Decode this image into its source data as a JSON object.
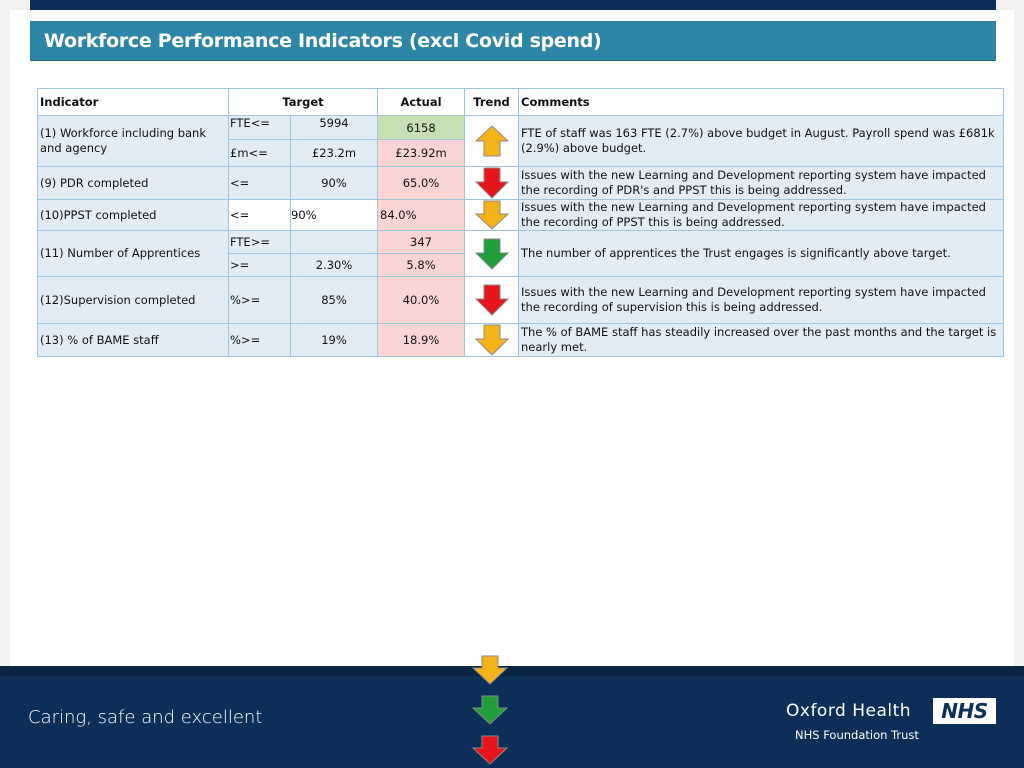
{
  "title": "Workforce Performance Indicators (excl Covid spend)",
  "header": {
    "indicator": "Indicator",
    "target": "Target",
    "actual": "Actual",
    "trend": "Trend",
    "comments": "Comments"
  },
  "rows": [
    {
      "indicator": "(1) Workforce including bank and agency",
      "sub": [
        {
          "op": "FTE<=",
          "target": "5994",
          "actual": "6158",
          "status": "green"
        },
        {
          "op": "£m<=",
          "target": "£23.2m",
          "actual": "£23.92m",
          "status": "red"
        }
      ],
      "trend": "up-amber",
      "comment": "FTE of staff was 163 FTE (2.7%) above budget in August. Payroll spend was £681k (2.9%) above budget."
    },
    {
      "indicator": "(9) PDR completed",
      "op": "<=",
      "target": "90%",
      "actual": "65.0%",
      "status": "red",
      "trend": "down-red",
      "comment": "Issues with the new Learning and Development reporting system have impacted the recording of PDR's and PPST this is being addressed."
    },
    {
      "indicator": "(10)PPST completed",
      "op": "<=",
      "target": "90%",
      "actual": "84.0%",
      "status": "red",
      "trend": "down-amber",
      "comment": "Issues with the new Learning and Development reporting system have impacted the recording of PPST this is being addressed."
    },
    {
      "indicator": "(11) Number of Apprentices",
      "sub": [
        {
          "op": "FTE>=",
          "target": "",
          "actual": "347",
          "status": "red"
        },
        {
          "op": ">=",
          "target": "2.30%",
          "actual": "5.8%",
          "status": "red"
        }
      ],
      "trend": "down-green",
      "comment": "The number of apprentices the Trust engages is significantly above target."
    },
    {
      "indicator": "(12)Supervision completed",
      "op": "%>=",
      "target": "85%",
      "actual": "40.0%",
      "status": "red",
      "trend": "down-red",
      "comment": "Issues with the new Learning and Development reporting system have impacted the recording of supervision this is being addressed."
    },
    {
      "indicator": "(13) % of BAME staff",
      "op": "%>=",
      "target": "19%",
      "actual": "18.9%",
      "status": "red",
      "trend": "down-amber",
      "comment": "The % of BAME staff has steadily increased over the past months and the target is nearly met."
    }
  ],
  "colors": {
    "amber": "#f5b31a",
    "red": "#e8141b",
    "green": "#1f9e3a",
    "title_bar": "#2e86a6",
    "navy": "#0b2f57"
  },
  "footer": {
    "tagline": "Caring, safe and excellent",
    "org_name": "Oxford Health",
    "org_sub": "NHS Foundation Trust",
    "logo": "NHS"
  },
  "legend_arrows": [
    "down-amber",
    "down-green",
    "down-red"
  ]
}
